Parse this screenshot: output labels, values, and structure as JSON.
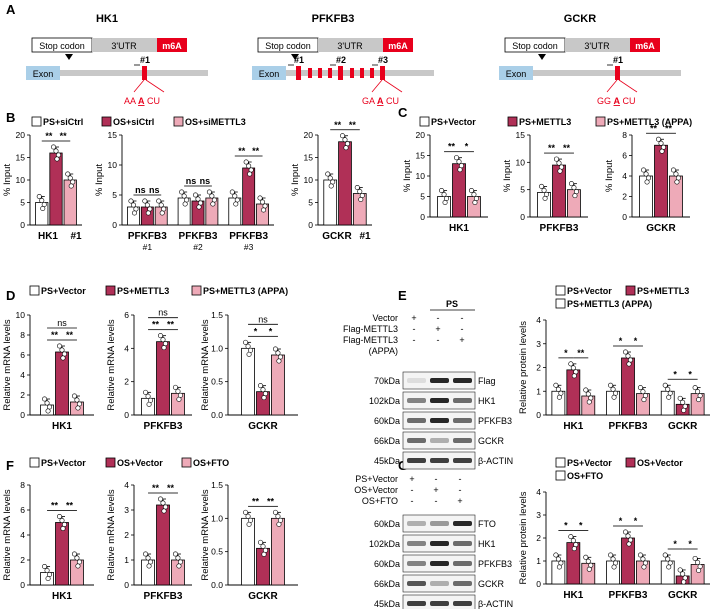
{
  "colors": {
    "white": "#ffffff",
    "dark": "#b03057",
    "light": "#eeaab8",
    "red": "#e8001c",
    "blue": "#aacfe8",
    "gray": "#c8c8c8"
  },
  "panelA": {
    "label": "A",
    "genes": [
      {
        "name": "HK1",
        "stop": "Stop codon",
        "utr": "3'UTR",
        "m6a": "m6A",
        "exon": "Exon",
        "sites": [
          "#1"
        ],
        "motif": [
          "AA",
          "A",
          "CU"
        ]
      },
      {
        "name": "PFKFB3",
        "stop": "Stop codon",
        "utr": "3'UTR",
        "m6a": "m6A",
        "exon": "Exon",
        "sites": [
          "#1",
          "#2",
          "#3"
        ],
        "motif": [
          "GA",
          "A",
          "CU"
        ]
      },
      {
        "name": "GCKR",
        "stop": "Stop codon",
        "utr": "3'UTR",
        "m6a": "m6A",
        "exon": "Exon",
        "sites": [
          "#1"
        ],
        "motif": [
          "GG",
          "A",
          "CU"
        ]
      }
    ]
  },
  "panelB": {
    "label": "B",
    "legend": [
      "PS+siCtrl",
      "OS+siCtrl",
      "OS+siMETTL3"
    ],
    "ylabel": "% Input",
    "ns": "ns",
    "sig": "**"
  },
  "panelC": {
    "label": "C",
    "legend": [
      "PS+Vector",
      "PS+METTL3",
      "PS+METTL3 (APPA)"
    ],
    "ylabel": "% Input",
    "star1": "*"
  },
  "panelD": {
    "label": "D",
    "legend": [
      "PS+Vector",
      "PS+METTL3",
      "PS+METTL3 (APPA)"
    ],
    "ylabel": "Relative mRNA levels"
  },
  "panelE": {
    "label": "E",
    "ps": "PS",
    "rows": [
      "Vector",
      "Flag-METTL3",
      "Flag-METTL3",
      "(APPA)"
    ],
    "signs": [
      [
        "+",
        "-",
        "-"
      ],
      [
        "-",
        "+",
        "-"
      ],
      [
        "-",
        "-",
        "+"
      ]
    ],
    "kda": [
      "70kDa",
      "102kDa",
      "60kDa",
      "66kDa",
      "45kDa"
    ],
    "proteins": [
      "Flag",
      "HK1",
      "PFKFB3",
      "GCKR",
      "β-ACTIN"
    ],
    "legend": [
      "PS+Vector",
      "PS+METTL3",
      "PS+METTL3 (APPA)"
    ],
    "ylabel": "Relative protein levels"
  },
  "panelF": {
    "label": "F",
    "legend": [
      "PS+Vector",
      "OS+Vector",
      "OS+FTO"
    ],
    "ylabel": "Relative mRNA levels"
  },
  "panelG": {
    "label": "G",
    "rows": [
      "PS+Vector",
      "OS+Vector",
      "OS+FTO"
    ],
    "signs": [
      [
        "+",
        "-",
        "-"
      ],
      [
        "-",
        "+",
        "-"
      ],
      [
        "-",
        "-",
        "+"
      ]
    ],
    "kda": [
      "60kDa",
      "102kDa",
      "60kDa",
      "66kDa",
      "45kDa"
    ],
    "proteins": [
      "FTO",
      "HK1",
      "PFKFB3",
      "GCKR",
      "β-ACTIN"
    ],
    "legend": [
      "PS+Vector",
      "OS+Vector",
      "OS+FTO"
    ],
    "ylabel": "Relative protein levels"
  },
  "chart_data": [
    {
      "id": "B1",
      "type": "bar",
      "title": "",
      "ylabel": "% Input",
      "ylim": [
        0,
        20
      ],
      "yticks": [
        0,
        5,
        10,
        15,
        20
      ],
      "categories": [
        "HK1"
      ],
      "xlabels": [
        "HK1",
        "#1"
      ],
      "series": [
        {
          "name": "PS+siCtrl",
          "values": [
            5
          ]
        },
        {
          "name": "OS+siCtrl",
          "values": [
            16
          ]
        },
        {
          "name": "OS+siMETTL3",
          "values": [
            10
          ]
        }
      ],
      "sig": [
        "**",
        "**"
      ]
    },
    {
      "id": "B2",
      "type": "bar",
      "ylabel": "% Input",
      "ylim": [
        0,
        15
      ],
      "yticks": [
        0,
        5,
        10,
        15
      ],
      "categories": [
        "PFKFB3 #1",
        "PFKFB3 #2",
        "PFKFB3 #3"
      ],
      "series": [
        {
          "name": "PS+siCtrl",
          "values": [
            3,
            4.5,
            4.5
          ]
        },
        {
          "name": "OS+siCtrl",
          "values": [
            3,
            4,
            9.5
          ]
        },
        {
          "name": "OS+siMETTL3",
          "values": [
            3,
            4.5,
            3.5
          ]
        }
      ],
      "sig": [
        "ns ns",
        "ns ns",
        "** **"
      ]
    },
    {
      "id": "B3",
      "type": "bar",
      "ylabel": "% Input",
      "ylim": [
        0,
        20
      ],
      "yticks": [
        0,
        5,
        10,
        15,
        20
      ],
      "categories": [
        "GCKR"
      ],
      "xlabels": [
        "GCKR",
        "#1"
      ],
      "series": [
        {
          "name": "PS+siCtrl",
          "values": [
            10
          ]
        },
        {
          "name": "OS+siCtrl",
          "values": [
            18.5
          ]
        },
        {
          "name": "OS+siMETTL3",
          "values": [
            7
          ]
        }
      ],
      "sig": [
        "**",
        "**"
      ]
    },
    {
      "id": "C1",
      "type": "bar",
      "ylabel": "% Input",
      "ylim": [
        0,
        20
      ],
      "yticks": [
        0,
        5,
        10,
        15,
        20
      ],
      "categories": [
        "HK1"
      ],
      "series": [
        {
          "name": "PS+Vector",
          "values": [
            5
          ]
        },
        {
          "name": "PS+METTL3",
          "values": [
            13
          ]
        },
        {
          "name": "PS+METTL3 (APPA)",
          "values": [
            5
          ]
        }
      ],
      "sig": [
        "**",
        "*"
      ]
    },
    {
      "id": "C2",
      "type": "bar",
      "ylabel": "% Input",
      "ylim": [
        0,
        15
      ],
      "yticks": [
        0,
        5,
        10,
        15
      ],
      "categories": [
        "PFKFB3"
      ],
      "series": [
        {
          "name": "PS+Vector",
          "values": [
            4.5
          ]
        },
        {
          "name": "PS+METTL3",
          "values": [
            9.5
          ]
        },
        {
          "name": "PS+METTL3 (APPA)",
          "values": [
            5
          ]
        }
      ],
      "sig": [
        "**",
        "**"
      ]
    },
    {
      "id": "C3",
      "type": "bar",
      "ylabel": "% Input",
      "ylim": [
        0,
        8
      ],
      "yticks": [
        0,
        2,
        4,
        6,
        8
      ],
      "categories": [
        "GCKR"
      ],
      "series": [
        {
          "name": "PS+Vector",
          "values": [
            4
          ]
        },
        {
          "name": "PS+METTL3",
          "values": [
            7
          ]
        },
        {
          "name": "PS+METTL3 (APPA)",
          "values": [
            4
          ]
        }
      ],
      "sig": [
        "**",
        "**"
      ]
    },
    {
      "id": "D1",
      "type": "bar",
      "ylabel": "Relative mRNA levels",
      "ylim": [
        0,
        10
      ],
      "yticks": [
        0,
        2,
        4,
        6,
        8,
        10
      ],
      "categories": [
        "HK1"
      ],
      "series": [
        {
          "name": "PS+Vector",
          "values": [
            1
          ]
        },
        {
          "name": "PS+METTL3",
          "values": [
            6.3
          ]
        },
        {
          "name": "PS+METTL3 (APPA)",
          "values": [
            1.3
          ]
        }
      ],
      "sig": [
        "**",
        "**"
      ],
      "top": "ns"
    },
    {
      "id": "D2",
      "type": "bar",
      "ylabel": "Relative mRNA levels",
      "ylim": [
        0,
        6
      ],
      "yticks": [
        0,
        2,
        4,
        6
      ],
      "categories": [
        "PFKFB3"
      ],
      "series": [
        {
          "name": "PS+Vector",
          "values": [
            1
          ]
        },
        {
          "name": "PS+METTL3",
          "values": [
            4.4
          ]
        },
        {
          "name": "PS+METTL3 (APPA)",
          "values": [
            1.3
          ]
        }
      ],
      "sig": [
        "**",
        "**"
      ],
      "top": "ns"
    },
    {
      "id": "D3",
      "type": "bar",
      "ylabel": "Relative mRNA levels",
      "ylim": [
        0,
        1.5
      ],
      "yticks": [
        0.0,
        0.5,
        1.0,
        1.5
      ],
      "categories": [
        "GCKR"
      ],
      "series": [
        {
          "name": "PS+Vector",
          "values": [
            1
          ]
        },
        {
          "name": "PS+METTL3",
          "values": [
            0.35
          ]
        },
        {
          "name": "PS+METTL3 (APPA)",
          "values": [
            0.9
          ]
        }
      ],
      "sig": [
        "*",
        "*"
      ],
      "top": "ns"
    },
    {
      "id": "E1",
      "type": "bar",
      "ylabel": "Relative protein levels",
      "ylim": [
        0,
        4
      ],
      "yticks": [
        0,
        1,
        2,
        3,
        4
      ],
      "categories": [
        "HK1",
        "PFKFB3",
        "GCKR"
      ],
      "series": [
        {
          "name": "PS+Vector",
          "values": [
            1,
            1,
            1
          ]
        },
        {
          "name": "PS+METTL3",
          "values": [
            1.9,
            2.4,
            0.45
          ]
        },
        {
          "name": "PS+METTL3 (APPA)",
          "values": [
            0.8,
            0.9,
            0.9
          ]
        }
      ],
      "sig": [
        "* **",
        "* *",
        "* *"
      ]
    },
    {
      "id": "F1",
      "type": "bar",
      "ylabel": "Relative mRNA levels",
      "ylim": [
        0,
        8
      ],
      "yticks": [
        0,
        2,
        4,
        6,
        8
      ],
      "categories": [
        "HK1"
      ],
      "series": [
        {
          "name": "PS+Vector",
          "values": [
            1
          ]
        },
        {
          "name": "OS+Vector",
          "values": [
            5
          ]
        },
        {
          "name": "OS+FTO",
          "values": [
            2
          ]
        }
      ],
      "sig": [
        "**",
        "**"
      ]
    },
    {
      "id": "F2",
      "type": "bar",
      "ylabel": "Relative mRNA levels",
      "ylim": [
        0,
        4
      ],
      "yticks": [
        0,
        1,
        2,
        3,
        4
      ],
      "categories": [
        "PFKFB3"
      ],
      "series": [
        {
          "name": "PS+Vector",
          "values": [
            1
          ]
        },
        {
          "name": "OS+Vector",
          "values": [
            3.2
          ]
        },
        {
          "name": "OS+FTO",
          "values": [
            1
          ]
        }
      ],
      "sig": [
        "**",
        "**"
      ]
    },
    {
      "id": "F3",
      "type": "bar",
      "ylabel": "Relative mRNA levels",
      "ylim": [
        0,
        1.5
      ],
      "yticks": [
        0.0,
        0.5,
        1.0,
        1.5
      ],
      "categories": [
        "GCKR"
      ],
      "series": [
        {
          "name": "PS+Vector",
          "values": [
            1
          ]
        },
        {
          "name": "OS+Vector",
          "values": [
            0.55
          ]
        },
        {
          "name": "OS+FTO",
          "values": [
            1
          ]
        }
      ],
      "sig": [
        "**",
        "**"
      ]
    },
    {
      "id": "G1",
      "type": "bar",
      "ylabel": "Relative protein levels",
      "ylim": [
        0,
        4
      ],
      "yticks": [
        0,
        1,
        2,
        3,
        4
      ],
      "categories": [
        "HK1",
        "PFKFB3",
        "GCKR"
      ],
      "series": [
        {
          "name": "PS+Vector",
          "values": [
            1,
            1,
            1
          ]
        },
        {
          "name": "OS+Vector",
          "values": [
            1.8,
            2,
            0.35
          ]
        },
        {
          "name": "OS+FTO",
          "values": [
            0.9,
            1,
            0.85
          ]
        }
      ],
      "sig": [
        "* *",
        "* *",
        "* *"
      ]
    }
  ]
}
